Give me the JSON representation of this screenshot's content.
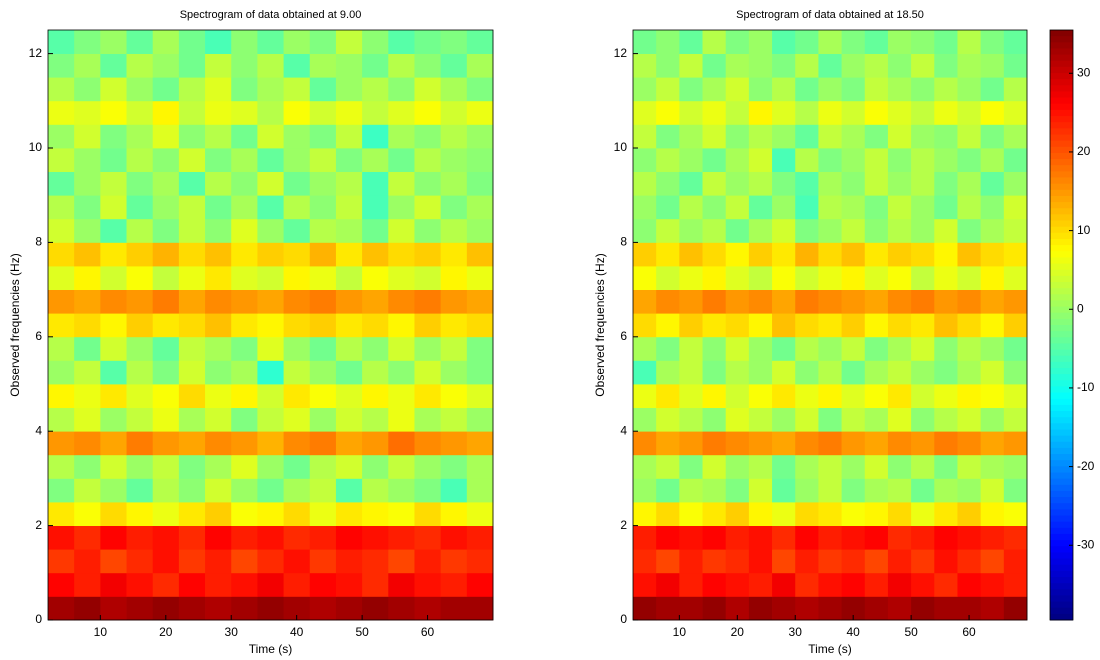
{
  "chart_data": [
    {
      "type": "heatmap",
      "title": "Spectrogram of data obtained at 9.00",
      "xlabel": "Time (s)",
      "ylabel": "Observed frequencies (Hz)",
      "colormap": "jet",
      "clim": [
        -39.5,
        35.5
      ],
      "xlim": [
        2,
        70
      ],
      "xticks": [
        10,
        20,
        30,
        40,
        50,
        60
      ],
      "ylim": [
        0,
        12.5
      ],
      "yticks": [
        0,
        2,
        4,
        6,
        8,
        10,
        12
      ],
      "x": [
        4,
        8,
        12,
        16,
        20,
        24,
        28,
        32,
        36,
        40,
        44,
        48,
        52,
        56,
        60,
        64,
        68
      ],
      "y": [
        0.25,
        0.75,
        1.25,
        1.75,
        2.25,
        2.75,
        3.25,
        3.75,
        4.25,
        4.75,
        5.25,
        5.75,
        6.25,
        6.75,
        7.25,
        7.75,
        8.25,
        8.75,
        9.25,
        9.75,
        10.25,
        10.75,
        11.25,
        11.75,
        12.25
      ],
      "values": [
        [
          33,
          34,
          32,
          33,
          34,
          33,
          32,
          33,
          34,
          33,
          32,
          33,
          34,
          33,
          32,
          33,
          33
        ],
        [
          26,
          24,
          27,
          25,
          23,
          26,
          24,
          25,
          27,
          24,
          26,
          25,
          23,
          27,
          25,
          24,
          26
        ],
        [
          22,
          24,
          21,
          23,
          25,
          22,
          24,
          21,
          23,
          25,
          22,
          24,
          23,
          21,
          24,
          22,
          23
        ],
        [
          25,
          23,
          26,
          24,
          25,
          23,
          26,
          24,
          25,
          23,
          24,
          26,
          25,
          24,
          23,
          25,
          24
        ],
        [
          9,
          7,
          10,
          8,
          6,
          9,
          11,
          7,
          8,
          10,
          6,
          9,
          8,
          7,
          10,
          8,
          6
        ],
        [
          -2,
          3,
          0,
          -4,
          2,
          -1,
          4,
          0,
          -3,
          1,
          3,
          -5,
          2,
          0,
          -2,
          -6,
          1
        ],
        [
          2,
          -1,
          4,
          0,
          3,
          -2,
          1,
          5,
          0,
          -3,
          2,
          4,
          -1,
          3,
          0,
          -2,
          1
        ],
        [
          15,
          16,
          14,
          17,
          15,
          14,
          16,
          15,
          13,
          16,
          17,
          14,
          15,
          18,
          16,
          15,
          14
        ],
        [
          2,
          5,
          0,
          3,
          6,
          1,
          4,
          -2,
          3,
          5,
          0,
          4,
          2,
          6,
          1,
          3,
          0
        ],
        [
          8,
          6,
          9,
          5,
          7,
          10,
          6,
          8,
          4,
          9,
          7,
          5,
          8,
          6,
          9,
          7,
          5
        ],
        [
          0,
          3,
          -5,
          2,
          -2,
          4,
          -1,
          1,
          -8,
          3,
          0,
          -3,
          2,
          -1,
          4,
          0,
          -2
        ],
        [
          2,
          -3,
          4,
          0,
          -4,
          3,
          1,
          -2,
          5,
          0,
          -3,
          2,
          -1,
          4,
          0,
          3,
          -2
        ],
        [
          9,
          10,
          8,
          11,
          9,
          10,
          12,
          9,
          8,
          10,
          11,
          9,
          10,
          8,
          11,
          9,
          10
        ],
        [
          15,
          14,
          16,
          15,
          17,
          14,
          16,
          15,
          14,
          16,
          17,
          15,
          14,
          16,
          17,
          15,
          14
        ],
        [
          5,
          8,
          4,
          7,
          3,
          6,
          9,
          5,
          4,
          8,
          6,
          3,
          7,
          5,
          4,
          8,
          6
        ],
        [
          10,
          12,
          9,
          11,
          13,
          10,
          12,
          9,
          11,
          10,
          13,
          9,
          12,
          10,
          11,
          9,
          12
        ],
        [
          4,
          0,
          -5,
          2,
          -2,
          3,
          -1,
          5,
          0,
          -4,
          2,
          1,
          -3,
          4,
          -1,
          2,
          0
        ],
        [
          2,
          -2,
          4,
          -4,
          0,
          3,
          -3,
          1,
          -5,
          2,
          -1,
          3,
          -6,
          0,
          4,
          -2,
          1
        ],
        [
          -4,
          0,
          3,
          -2,
          1,
          -5,
          2,
          -1,
          4,
          -3,
          0,
          2,
          -6,
          3,
          -1,
          1,
          -2
        ],
        [
          3,
          0,
          -3,
          2,
          -1,
          4,
          -2,
          1,
          -4,
          0,
          3,
          -2,
          1,
          -3,
          2,
          0,
          -1
        ],
        [
          0,
          4,
          -2,
          1,
          5,
          -1,
          2,
          -3,
          4,
          0,
          -2,
          3,
          -7,
          1,
          -1,
          2,
          0
        ],
        [
          6,
          5,
          7,
          4,
          8,
          3,
          6,
          5,
          2,
          7,
          4,
          6,
          3,
          5,
          7,
          4,
          6
        ],
        [
          2,
          -1,
          4,
          0,
          -3,
          2,
          5,
          -2,
          1,
          3,
          -4,
          0,
          2,
          -1,
          4,
          1,
          -2
        ],
        [
          -2,
          1,
          -4,
          2,
          0,
          -3,
          3,
          -1,
          2,
          -5,
          1,
          0,
          -3,
          2,
          -1,
          -4,
          1
        ],
        [
          -5,
          -2,
          0,
          -4,
          1,
          -3,
          -6,
          -1,
          -4,
          0,
          -2,
          3,
          -1,
          -5,
          -3,
          -2,
          -4
        ]
      ]
    },
    {
      "type": "heatmap",
      "title": "Spectrogram of data obtained at 18.50",
      "xlabel": "Time (s)",
      "ylabel": "Observed frequencies (Hz)",
      "colormap": "jet",
      "clim": [
        -39.5,
        35.5
      ],
      "colorbar_ticks": [
        -30,
        -20,
        -10,
        0,
        10,
        20,
        30
      ],
      "xlim": [
        2,
        70
      ],
      "xticks": [
        10,
        20,
        30,
        40,
        50,
        60
      ],
      "ylim": [
        0,
        12.5
      ],
      "yticks": [
        0,
        2,
        4,
        6,
        8,
        10,
        12
      ],
      "x": [
        4,
        8,
        12,
        16,
        20,
        24,
        28,
        32,
        36,
        40,
        44,
        48,
        52,
        56,
        60,
        64,
        68
      ],
      "y": [
        0.25,
        0.75,
        1.25,
        1.75,
        2.25,
        2.75,
        3.25,
        3.75,
        4.25,
        4.75,
        5.25,
        5.75,
        6.25,
        6.75,
        7.25,
        7.75,
        8.25,
        8.75,
        9.25,
        9.75,
        10.25,
        10.75,
        11.25,
        11.75,
        12.25
      ],
      "values": [
        [
          34,
          33,
          33,
          34,
          32,
          34,
          33,
          32,
          33,
          34,
          33,
          32,
          34,
          33,
          33,
          32,
          34
        ],
        [
          25,
          27,
          24,
          26,
          25,
          24,
          27,
          23,
          25,
          26,
          24,
          27,
          25,
          23,
          26,
          25,
          24
        ],
        [
          23,
          21,
          24,
          22,
          23,
          25,
          21,
          24,
          22,
          23,
          21,
          24,
          22,
          25,
          23,
          21,
          24
        ],
        [
          24,
          26,
          25,
          26,
          24,
          25,
          23,
          26,
          24,
          25,
          26,
          23,
          24,
          26,
          25,
          24,
          23
        ],
        [
          8,
          10,
          7,
          9,
          11,
          8,
          6,
          10,
          9,
          7,
          8,
          10,
          6,
          9,
          11,
          8,
          7
        ],
        [
          0,
          -3,
          2,
          1,
          -2,
          4,
          -4,
          0,
          3,
          -2,
          1,
          2,
          -3,
          1,
          0,
          4,
          -2
        ],
        [
          1,
          3,
          -2,
          4,
          0,
          2,
          -3,
          1,
          3,
          0,
          4,
          -1,
          2,
          -2,
          3,
          1,
          0
        ],
        [
          16,
          14,
          15,
          17,
          16,
          15,
          14,
          16,
          17,
          15,
          14,
          16,
          15,
          17,
          16,
          14,
          15
        ],
        [
          0,
          4,
          2,
          -1,
          5,
          3,
          0,
          4,
          -2,
          3,
          1,
          5,
          -1,
          2,
          4,
          0,
          3
        ],
        [
          6,
          9,
          5,
          8,
          4,
          7,
          9,
          6,
          8,
          5,
          7,
          9,
          4,
          6,
          8,
          7,
          5
        ],
        [
          -6,
          1,
          3,
          -2,
          2,
          0,
          4,
          -1,
          2,
          -3,
          1,
          3,
          0,
          -2,
          1,
          4,
          -1
        ],
        [
          1,
          -2,
          3,
          -1,
          4,
          0,
          -3,
          2,
          0,
          3,
          -2,
          1,
          4,
          -1,
          2,
          0,
          -3
        ],
        [
          10,
          8,
          11,
          9,
          10,
          8,
          12,
          10,
          9,
          11,
          8,
          10,
          9,
          12,
          10,
          8,
          11
        ],
        [
          14,
          16,
          15,
          17,
          15,
          16,
          14,
          17,
          16,
          15,
          14,
          16,
          17,
          15,
          16,
          14,
          15
        ],
        [
          7,
          4,
          6,
          8,
          5,
          3,
          7,
          4,
          6,
          8,
          5,
          7,
          3,
          6,
          4,
          8,
          5
        ],
        [
          11,
          9,
          12,
          10,
          8,
          11,
          9,
          13,
          10,
          12,
          9,
          11,
          10,
          8,
          12,
          10,
          9
        ],
        [
          -1,
          3,
          0,
          2,
          -3,
          1,
          4,
          -2,
          0,
          3,
          -1,
          2,
          0,
          4,
          -2,
          1,
          3
        ],
        [
          0,
          -3,
          2,
          -1,
          3,
          -4,
          0,
          -6,
          2,
          1,
          -2,
          3,
          0,
          -3,
          2,
          -1,
          4
        ],
        [
          2,
          -1,
          -4,
          3,
          0,
          2,
          -2,
          -5,
          1,
          -1,
          3,
          0,
          2,
          -2,
          1,
          -4,
          0
        ],
        [
          -1,
          2,
          0,
          -3,
          1,
          4,
          -6,
          2,
          -2,
          0,
          3,
          -1,
          2,
          0,
          -2,
          1,
          -3
        ],
        [
          3,
          -2,
          1,
          4,
          -1,
          2,
          0,
          -4,
          3,
          1,
          -2,
          4,
          0,
          -1,
          3,
          -2,
          1
        ],
        [
          5,
          7,
          4,
          6,
          3,
          8,
          5,
          2,
          6,
          4,
          7,
          5,
          3,
          6,
          4,
          7,
          5
        ],
        [
          0,
          3,
          -2,
          1,
          4,
          -1,
          2,
          -3,
          0,
          -2,
          3,
          1,
          -1,
          2,
          0,
          -3,
          2
        ],
        [
          2,
          -1,
          3,
          -3,
          1,
          0,
          -2,
          2,
          -4,
          0,
          2,
          -1,
          3,
          -2,
          1,
          0,
          -3
        ],
        [
          -3,
          -1,
          -4,
          2,
          -2,
          0,
          -5,
          -3,
          1,
          -2,
          -4,
          0,
          -1,
          -3,
          2,
          -2,
          -4
        ]
      ]
    }
  ]
}
